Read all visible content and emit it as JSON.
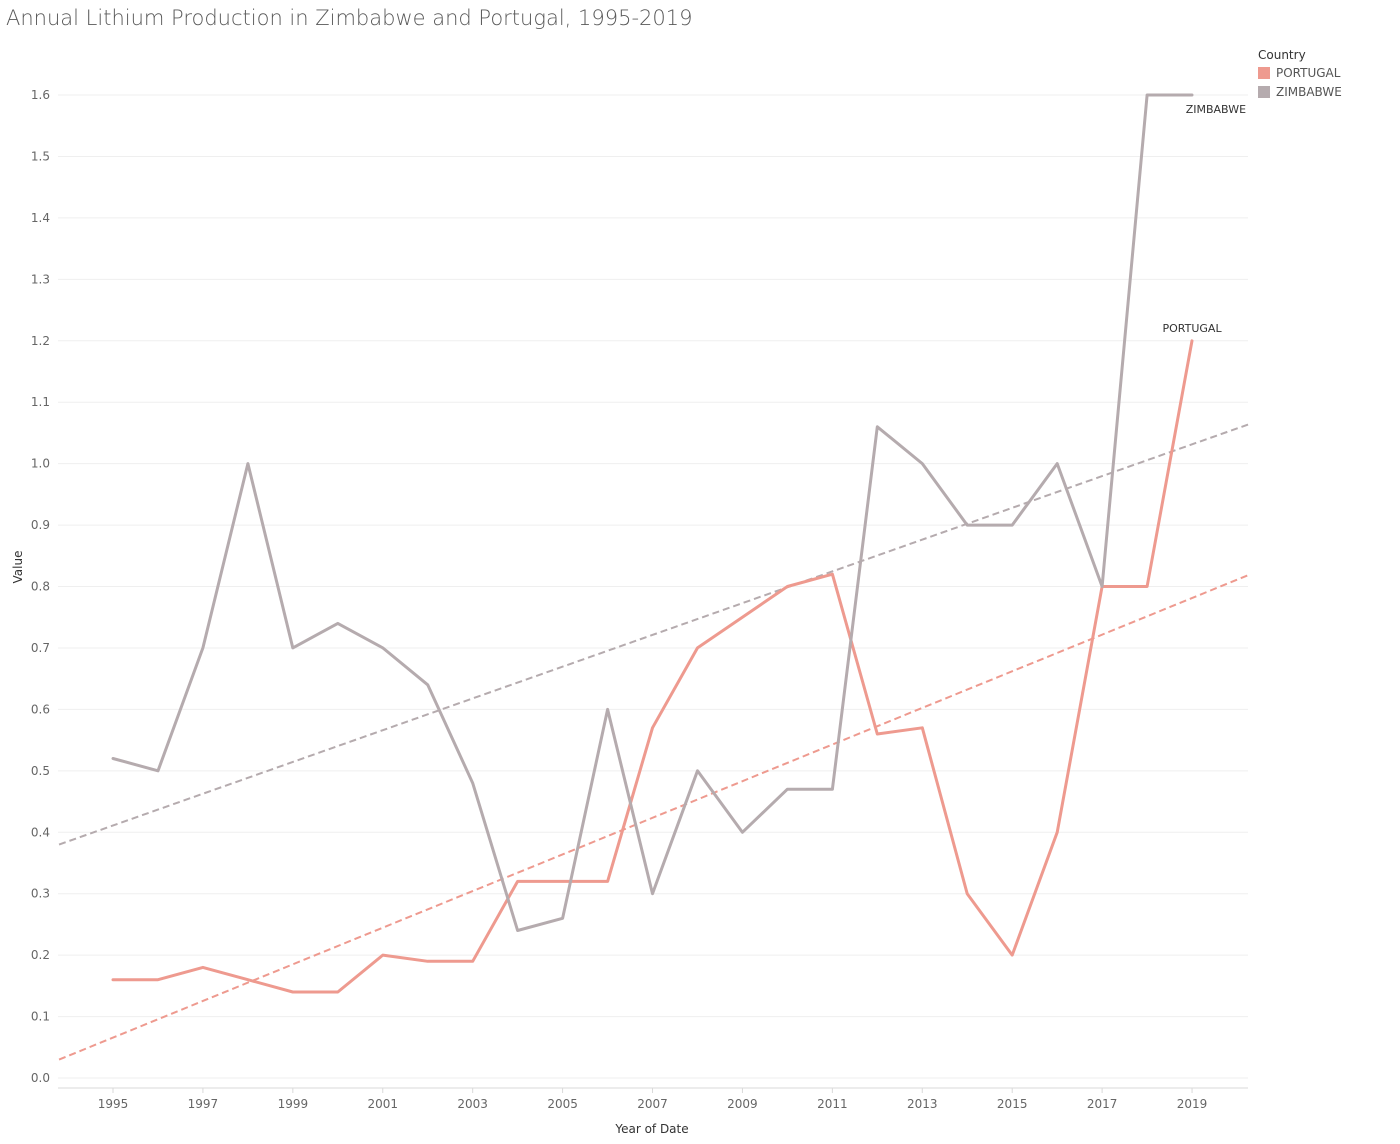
{
  "chart_data": {
    "type": "line",
    "title": "Annual Lithium Production in Zimbabwe and Portugal, 1995-2019",
    "xlabel": "Year of Date",
    "ylabel": "Value",
    "ylim": [
      0,
      1.6
    ],
    "yticks": [
      "0.0",
      "0.1",
      "0.2",
      "0.3",
      "0.4",
      "0.5",
      "0.6",
      "0.7",
      "0.8",
      "0.9",
      "1.0",
      "1.1",
      "1.2",
      "1.3",
      "1.4",
      "1.5",
      "1.6"
    ],
    "xticks": [
      "1995",
      "1997",
      "1999",
      "2001",
      "2003",
      "2005",
      "2007",
      "2009",
      "2011",
      "2013",
      "2015",
      "2017",
      "2019"
    ],
    "grid": true,
    "legend": {
      "title": "Country",
      "position": "top-right"
    },
    "x": [
      1995,
      1996,
      1997,
      1998,
      1999,
      2000,
      2001,
      2002,
      2003,
      2004,
      2005,
      2006,
      2007,
      2008,
      2009,
      2010,
      2011,
      2012,
      2013,
      2014,
      2015,
      2016,
      2017,
      2018,
      2019
    ],
    "series": [
      {
        "name": "PORTUGAL",
        "end_label": "PORTUGAL",
        "color": "#EE9A8F",
        "values": [
          0.16,
          0.16,
          0.18,
          0.16,
          0.14,
          0.14,
          0.2,
          0.19,
          0.19,
          0.32,
          0.32,
          0.32,
          0.57,
          0.7,
          0.75,
          0.8,
          0.82,
          0.56,
          0.57,
          0.3,
          0.2,
          0.4,
          0.8,
          0.8,
          1.2
        ],
        "trend": {
          "color": "#EE9A8F",
          "dashed": true,
          "from": [
            1993.8,
            0.03
          ],
          "to": [
            2020.3,
            0.82
          ]
        }
      },
      {
        "name": "ZIMBABWE",
        "end_label": "ZIMBABWE",
        "color": "#B5ABAE",
        "values": [
          0.52,
          0.5,
          0.7,
          1.0,
          0.7,
          0.74,
          0.7,
          0.64,
          0.48,
          0.24,
          0.26,
          0.6,
          0.3,
          0.5,
          0.4,
          0.47,
          0.47,
          1.06,
          1.0,
          0.9,
          0.9,
          1.0,
          0.8,
          1.6,
          1.6
        ],
        "trend": {
          "color": "#B5ABAE",
          "dashed": true,
          "from": [
            1993.8,
            0.38
          ],
          "to": [
            2020.3,
            1.065
          ]
        }
      }
    ]
  }
}
